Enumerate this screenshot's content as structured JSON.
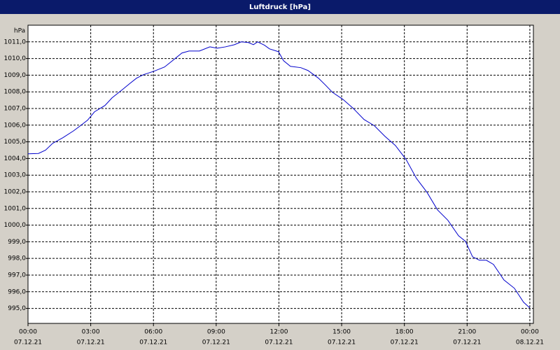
{
  "chart_data": {
    "type": "line",
    "title": "Luftdruck [hPa]",
    "y_unit": "hPa",
    "x": [
      0,
      0.5,
      0.84,
      1.17,
      1.67,
      2.18,
      2.5,
      2.85,
      3.18,
      3.68,
      4.02,
      4.52,
      4.85,
      5.19,
      5.52,
      6.03,
      6.53,
      6.86,
      7.36,
      7.7,
      8.2,
      8.7,
      9.04,
      9.44,
      9.87,
      10.2,
      10.54,
      10.78,
      10.98,
      11.31,
      11.55,
      11.98,
      12.22,
      12.55,
      13.05,
      13.39,
      13.89,
      14.23,
      14.56,
      15.06,
      15.56,
      16.07,
      16.57,
      17.07,
      17.57,
      18.08,
      18.58,
      19.08,
      19.58,
      20.08,
      20.59,
      20.92,
      21.26,
      21.59,
      21.92,
      22.26,
      22.76,
      23.26,
      23.7,
      24.0
    ],
    "series": [
      {
        "name": "Luftdruck",
        "color": "#0000cc",
        "values": [
          1004.28,
          1004.3,
          1004.5,
          1004.9,
          1005.25,
          1005.66,
          1005.96,
          1006.3,
          1006.8,
          1007.18,
          1007.64,
          1008.14,
          1008.48,
          1008.82,
          1009.03,
          1009.24,
          1009.49,
          1009.82,
          1010.33,
          1010.45,
          1010.45,
          1010.7,
          1010.62,
          1010.7,
          1010.83,
          1011.0,
          1010.96,
          1010.83,
          1011.0,
          1010.8,
          1010.58,
          1010.41,
          1009.87,
          1009.53,
          1009.45,
          1009.28,
          1008.82,
          1008.4,
          1007.97,
          1007.55,
          1007.0,
          1006.34,
          1005.96,
          1005.33,
          1004.78,
          1003.94,
          1002.8,
          1001.97,
          1000.92,
          1000.29,
          999.36,
          999.03,
          998.1,
          997.89,
          997.89,
          997.64,
          996.71,
          996.21,
          995.37,
          995.03
        ]
      }
    ],
    "xlim": [
      0,
      24.17
    ],
    "xticks": [
      {
        "value": 0,
        "label": "00:00",
        "date": "07.12.21"
      },
      {
        "value": 3,
        "label": "03:00",
        "date": "07.12.21"
      },
      {
        "value": 6,
        "label": "06:00",
        "date": "07.12.21"
      },
      {
        "value": 9,
        "label": "09:00",
        "date": "07.12.21"
      },
      {
        "value": 12,
        "label": "12:00",
        "date": "07.12.21"
      },
      {
        "value": 15,
        "label": "15:00",
        "date": "07.12.21"
      },
      {
        "value": 18,
        "label": "18:00",
        "date": "07.12.21"
      },
      {
        "value": 21,
        "label": "21:00",
        "date": "07.12.21"
      },
      {
        "value": 24,
        "label": "00:00",
        "date": "08.12.21"
      }
    ],
    "ylim": [
      994.1,
      1012.0
    ],
    "yticks": [
      {
        "value": 995,
        "label": "995,0"
      },
      {
        "value": 996,
        "label": "996,0"
      },
      {
        "value": 997,
        "label": "997,0"
      },
      {
        "value": 998,
        "label": "998,0"
      },
      {
        "value": 999,
        "label": "999,0"
      },
      {
        "value": 1000,
        "label": "1000,0"
      },
      {
        "value": 1001,
        "label": "1001,0"
      },
      {
        "value": 1002,
        "label": "1002,0"
      },
      {
        "value": 1003,
        "label": "1003,0"
      },
      {
        "value": 1004,
        "label": "1004,0"
      },
      {
        "value": 1005,
        "label": "1005,0"
      },
      {
        "value": 1006,
        "label": "1006,0"
      },
      {
        "value": 1007,
        "label": "1007,0"
      },
      {
        "value": 1008,
        "label": "1008,0"
      },
      {
        "value": 1009,
        "label": "1009,0"
      },
      {
        "value": 1010,
        "label": "1010,0"
      },
      {
        "value": 1011,
        "label": "1011,0"
      }
    ],
    "grid": true
  }
}
